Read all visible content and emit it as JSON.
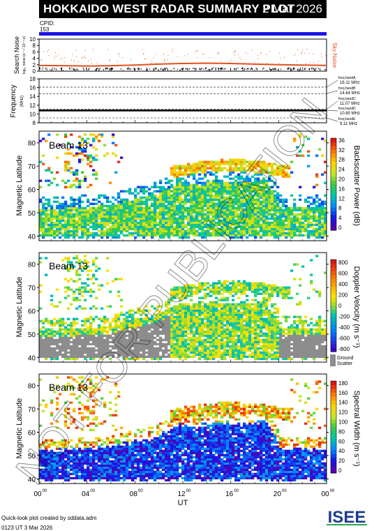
{
  "header": {
    "title": "HOKKAIDO WEST RADAR SUMMARY PLOT",
    "date": "2 Mar 2026"
  },
  "cpid": {
    "label": "CPID:",
    "value": "153"
  },
  "colors": {
    "cpid_bar": "#1a14e6",
    "sky_noise": "#e0501e",
    "ground_scatter": "#8c8c8c"
  },
  "chart_data": [
    {
      "type": "scatter",
      "name": "noise",
      "ylabel": "Search Noise",
      "ysublabel": "log₁₀ noise (e⁻¹ / 10⁻⁴ e)",
      "ylim": [
        0,
        10
      ],
      "yticks": [
        0,
        2,
        4,
        6,
        8,
        10
      ],
      "series_label": "Sky Noise",
      "x": [
        0,
        2,
        4,
        6,
        8,
        10,
        12,
        14,
        16,
        18,
        20,
        22,
        24
      ],
      "values": [
        1.8,
        1.7,
        1.6,
        1.7,
        1.9,
        2.2,
        2.4,
        2.5,
        2.4,
        2.2,
        2.0,
        1.9,
        1.8
      ]
    },
    {
      "type": "line",
      "name": "frequency",
      "ylabel": "Frequency",
      "ysublabel": "(MHz)",
      "ylim": [
        8,
        18
      ],
      "yticks": [
        8,
        10,
        12,
        14,
        16,
        18
      ],
      "bands": [
        {
          "label": "freq bandA",
          "value": "16.11 MHz",
          "mhz": 16.11
        },
        {
          "label": "freq bandB",
          "value": "14.64 MHz",
          "mhz": 14.64
        },
        {
          "label": "freq bandC",
          "value": "11.07 MHz",
          "mhz": 11.07
        },
        {
          "label": "freq bandD",
          "value": "10.80 MHz",
          "mhz": 10.8
        },
        {
          "label": "freq bandE",
          "value": "9.11 MHz",
          "mhz": 9.11
        }
      ],
      "operating_mhz": 10.8
    },
    {
      "type": "heatmap",
      "name": "power",
      "beam": "Beam 13",
      "ylabel": "Magnetic Latitude",
      "ylim": [
        38,
        85
      ],
      "yticks": [
        40,
        50,
        60,
        70,
        80
      ],
      "cbar_label": "Backscatter Power (dB)",
      "cbar_ticks": [
        "0",
        "4",
        "8",
        "12",
        "16",
        "20",
        "24",
        "28",
        "32",
        "36"
      ]
    },
    {
      "type": "heatmap",
      "name": "velocity",
      "beam": "Beam 13",
      "ylabel": "Magnetic Latitude",
      "ylim": [
        38,
        85
      ],
      "yticks": [
        40,
        50,
        60,
        70,
        80
      ],
      "cbar_label": "Doppler Velocity (m s⁻¹)",
      "cbar_ticks": [
        "-800",
        "-600",
        "-400",
        "-200",
        "0",
        "200",
        "400",
        "600",
        "800"
      ],
      "ground_scatter_label": [
        "Ground",
        "Scatter"
      ]
    },
    {
      "type": "heatmap",
      "name": "width",
      "beam": "Beam 13",
      "ylabel": "Magnetic Latitude",
      "ylim": [
        38,
        85
      ],
      "yticks": [
        40,
        50,
        60,
        70,
        80
      ],
      "cbar_label": "Spectral Width (m s⁻¹)",
      "cbar_ticks": [
        "0",
        "20",
        "40",
        "60",
        "80",
        "100",
        "120",
        "140",
        "160",
        "180"
      ]
    }
  ],
  "xaxis": {
    "label": "UT",
    "xlim": [
      0,
      24
    ],
    "ticks": [
      {
        "h": 0,
        "label": "00",
        "sup": "00"
      },
      {
        "h": 4,
        "label": "04",
        "sup": "00"
      },
      {
        "h": 8,
        "label": "08",
        "sup": "00"
      },
      {
        "h": 12,
        "label": "12",
        "sup": "00"
      },
      {
        "h": 16,
        "label": "16",
        "sup": "00"
      },
      {
        "h": 20,
        "label": "20",
        "sup": "00"
      },
      {
        "h": 24,
        "label": "00",
        "sup": "00"
      }
    ]
  },
  "watermark": "NOT FOR PUBLICATION",
  "footer": {
    "line1": "Quick-look plot created by sddata.adm",
    "line2": "0123 UT  3 Mar 2026"
  },
  "logo": {
    "text": "ISEE"
  }
}
